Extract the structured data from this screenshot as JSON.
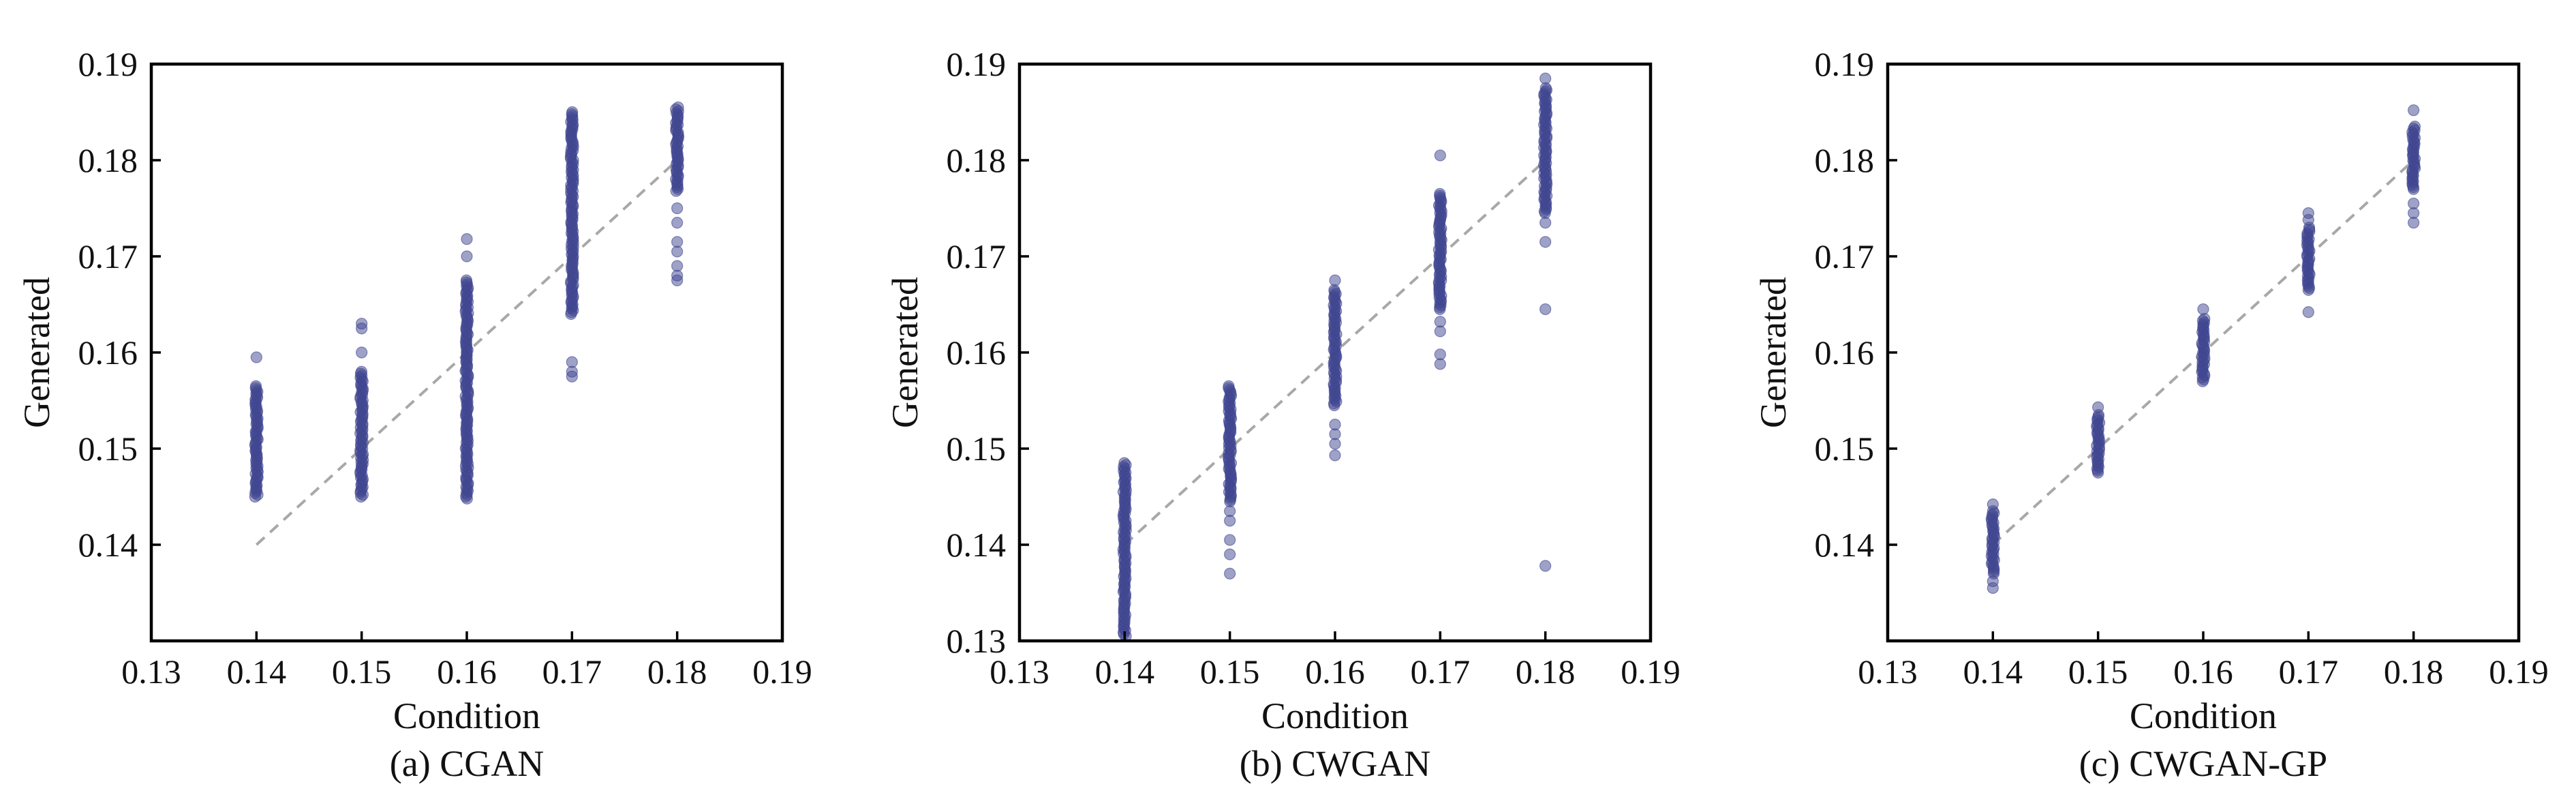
{
  "chart_data": [
    {
      "type": "scatter",
      "caption": "(a) CGAN",
      "xlabel": "Condition",
      "ylabel": "Generated",
      "xlim": [
        0.13,
        0.19
      ],
      "ylim": [
        0.13,
        0.19
      ],
      "xticks": [
        "0.13",
        "0.14",
        "0.15",
        "0.16",
        "0.17",
        "0.18",
        "0.19"
      ],
      "yticks": [
        "0.14",
        "0.15",
        "0.16",
        "0.17",
        "0.18",
        "0.19"
      ],
      "reference_line": {
        "from": [
          0.14,
          0.14
        ],
        "to": [
          0.18,
          0.18
        ],
        "style": "dashed",
        "color": "#a8a8a8"
      },
      "point_color": "#3f4590",
      "groups": [
        {
          "x": 0.14,
          "core": [
            0.145,
            0.1565
          ],
          "tail": [
            0.1595
          ]
        },
        {
          "x": 0.15,
          "core": [
            0.145,
            0.158
          ],
          "tail": [
            0.16,
            0.1625,
            0.163
          ]
        },
        {
          "x": 0.16,
          "core": [
            0.1448,
            0.1675
          ],
          "tail": [
            0.17,
            0.1718
          ]
        },
        {
          "x": 0.17,
          "core": [
            0.164,
            0.185
          ],
          "tail": [
            0.1575,
            0.158,
            0.159
          ]
        },
        {
          "x": 0.18,
          "core": [
            0.1768,
            0.1855
          ],
          "tail": [
            0.1675,
            0.168,
            0.169,
            0.1705,
            0.1715,
            0.1735,
            0.175
          ]
        }
      ]
    },
    {
      "type": "scatter",
      "caption": "(b) CWGAN",
      "xlabel": "Condition",
      "ylabel": "Generated",
      "xlim": [
        0.13,
        0.19
      ],
      "ylim": [
        0.13,
        0.19
      ],
      "xticks": [
        "0.13",
        "0.14",
        "0.15",
        "0.16",
        "0.17",
        "0.18",
        "0.19"
      ],
      "yticks": [
        "0.13",
        "0.14",
        "0.15",
        "0.16",
        "0.17",
        "0.18",
        "0.19"
      ],
      "reference_line": {
        "from": [
          0.14,
          0.14
        ],
        "to": [
          0.18,
          0.18
        ],
        "style": "dashed",
        "color": "#a8a8a8"
      },
      "point_color": "#3f4590",
      "groups": [
        {
          "x": 0.14,
          "core": [
            0.1305,
            0.1485
          ],
          "tail": []
        },
        {
          "x": 0.15,
          "core": [
            0.1445,
            0.1565
          ],
          "tail": [
            0.137,
            0.139,
            0.1405,
            0.1425,
            0.1435
          ]
        },
        {
          "x": 0.16,
          "core": [
            0.1545,
            0.1665
          ],
          "tail": [
            0.1493,
            0.1505,
            0.1515,
            0.1525,
            0.1675
          ]
        },
        {
          "x": 0.17,
          "core": [
            0.1645,
            0.1765
          ],
          "tail": [
            0.1588,
            0.1598,
            0.1622,
            0.1632,
            0.1805
          ]
        },
        {
          "x": 0.18,
          "core": [
            0.1745,
            0.1875
          ],
          "tail": [
            0.1378,
            0.1645,
            0.1715,
            0.1735,
            0.1885
          ]
        }
      ]
    },
    {
      "type": "scatter",
      "caption": "(c) CWGAN-GP",
      "xlabel": "Condition",
      "ylabel": "Generated",
      "xlim": [
        0.13,
        0.19
      ],
      "ylim": [
        0.13,
        0.19
      ],
      "xticks": [
        "0.13",
        "0.14",
        "0.15",
        "0.16",
        "0.17",
        "0.18",
        "0.19"
      ],
      "yticks": [
        "0.14",
        "0.15",
        "0.16",
        "0.17",
        "0.18",
        "0.19"
      ],
      "reference_line": {
        "from": [
          0.14,
          0.14
        ],
        "to": [
          0.18,
          0.18
        ],
        "style": "dashed",
        "color": "#a8a8a8"
      },
      "point_color": "#3f4590",
      "groups": [
        {
          "x": 0.14,
          "core": [
            0.137,
            0.1435
          ],
          "tail": [
            0.1355,
            0.1362,
            0.1442
          ]
        },
        {
          "x": 0.15,
          "core": [
            0.1475,
            0.1535
          ],
          "tail": [
            0.1543
          ]
        },
        {
          "x": 0.16,
          "core": [
            0.157,
            0.1635
          ],
          "tail": [
            0.1645
          ]
        },
        {
          "x": 0.17,
          "core": [
            0.1665,
            0.173
          ],
          "tail": [
            0.1642,
            0.1738,
            0.1745
          ]
        },
        {
          "x": 0.18,
          "core": [
            0.177,
            0.1835
          ],
          "tail": [
            0.1735,
            0.1745,
            0.1755,
            0.1852
          ]
        }
      ]
    }
  ]
}
